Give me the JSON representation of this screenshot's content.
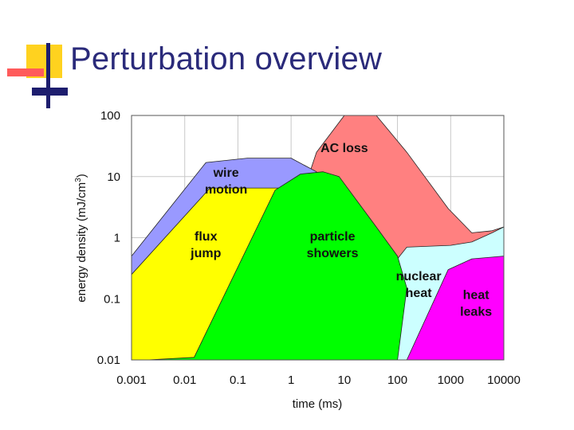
{
  "slide": {
    "title": "Perturbation overview"
  },
  "colors": {
    "title": "#2a2a7a",
    "logo_yellow": "#ffd21f",
    "logo_red": "#ff5b5b",
    "logo_blue": "#1d1d6e"
  },
  "chart_data": {
    "type": "area",
    "title": "",
    "xlabel": "time (ms)",
    "ylabel": "energy density (mJ/cm3)",
    "ylabel_main": "energy density (mJ/cm",
    "ylabel_sup": "3",
    "ylabel_close": ")",
    "x_scale": "log",
    "y_scale": "log",
    "xlim": [
      0.001,
      10000
    ],
    "ylim": [
      0.01,
      100
    ],
    "x_ticks": [
      0.001,
      0.01,
      0.1,
      1,
      10,
      100,
      1000,
      10000
    ],
    "x_tick_labels": [
      "0.001",
      "0.01",
      "0.1",
      "1",
      "10",
      "100",
      "1000",
      "10000"
    ],
    "y_ticks": [
      0.01,
      0.1,
      1,
      10,
      100
    ],
    "y_tick_labels": [
      "0.01",
      "0.1",
      "1",
      "10",
      "100"
    ],
    "grid": true,
    "regions": [
      {
        "name": "AC loss",
        "label_lines": [
          "AC loss"
        ],
        "color": "#ff8080",
        "label_at": [
          10,
          25
        ],
        "polygon": [
          [
            0.15,
            0.01
          ],
          [
            3,
            25
          ],
          [
            10,
            100
          ],
          [
            40,
            100
          ],
          [
            150,
            25
          ],
          [
            900,
            3
          ],
          [
            2500,
            1.2
          ],
          [
            6000,
            1.3
          ],
          [
            10000,
            1.5
          ],
          [
            10000,
            0.01
          ]
        ]
      },
      {
        "name": "nuclear heat",
        "label_lines": [
          "nuclear",
          "heat"
        ],
        "color": "#ccffff",
        "label_at": [
          250,
          0.2
        ],
        "polygon": [
          [
            3,
            0.01
          ],
          [
            150,
            0.7
          ],
          [
            1000,
            0.75
          ],
          [
            2500,
            0.85
          ],
          [
            6000,
            1.2
          ],
          [
            10000,
            1.5
          ],
          [
            10000,
            0.01
          ]
        ]
      },
      {
        "name": "wire motion",
        "label_lines": [
          "wire",
          "motion"
        ],
        "color": "#9999ff",
        "label_at": [
          0.06,
          10
        ],
        "polygon": [
          [
            0.001,
            0.01
          ],
          [
            0.001,
            0.5
          ],
          [
            0.025,
            17
          ],
          [
            0.15,
            20
          ],
          [
            1,
            20
          ],
          [
            3,
            12
          ],
          [
            2,
            0.01
          ]
        ]
      },
      {
        "name": "flux jump",
        "label_lines": [
          "flux",
          "jump"
        ],
        "color": "#ffff00",
        "label_at": [
          0.025,
          0.9
        ],
        "polygon": [
          [
            0.001,
            0.01
          ],
          [
            0.001,
            0.25
          ],
          [
            0.03,
            6.5
          ],
          [
            0.1,
            6.5
          ],
          [
            0.6,
            6.5
          ],
          [
            0.6,
            0.01
          ]
        ]
      },
      {
        "name": "particle showers",
        "label_lines": [
          "particle",
          "showers"
        ],
        "color": "#00ff00",
        "label_at": [
          6,
          0.9
        ],
        "polygon": [
          [
            0.002,
            0.01
          ],
          [
            0.015,
            0.011
          ],
          [
            0.5,
            6
          ],
          [
            1.5,
            11
          ],
          [
            4,
            12
          ],
          [
            8,
            10
          ],
          [
            40,
            1.5
          ],
          [
            100,
            0.5
          ],
          [
            150,
            0.15
          ],
          [
            100,
            0.01
          ]
        ]
      },
      {
        "name": "heat leaks",
        "label_lines": [
          "heat",
          "leaks"
        ],
        "color": "#ff00ff",
        "label_at": [
          3000,
          0.1
        ],
        "polygon": [
          [
            150,
            0.01
          ],
          [
            900,
            0.3
          ],
          [
            2500,
            0.45
          ],
          [
            10000,
            0.5
          ],
          [
            10000,
            0.01
          ]
        ]
      }
    ]
  }
}
